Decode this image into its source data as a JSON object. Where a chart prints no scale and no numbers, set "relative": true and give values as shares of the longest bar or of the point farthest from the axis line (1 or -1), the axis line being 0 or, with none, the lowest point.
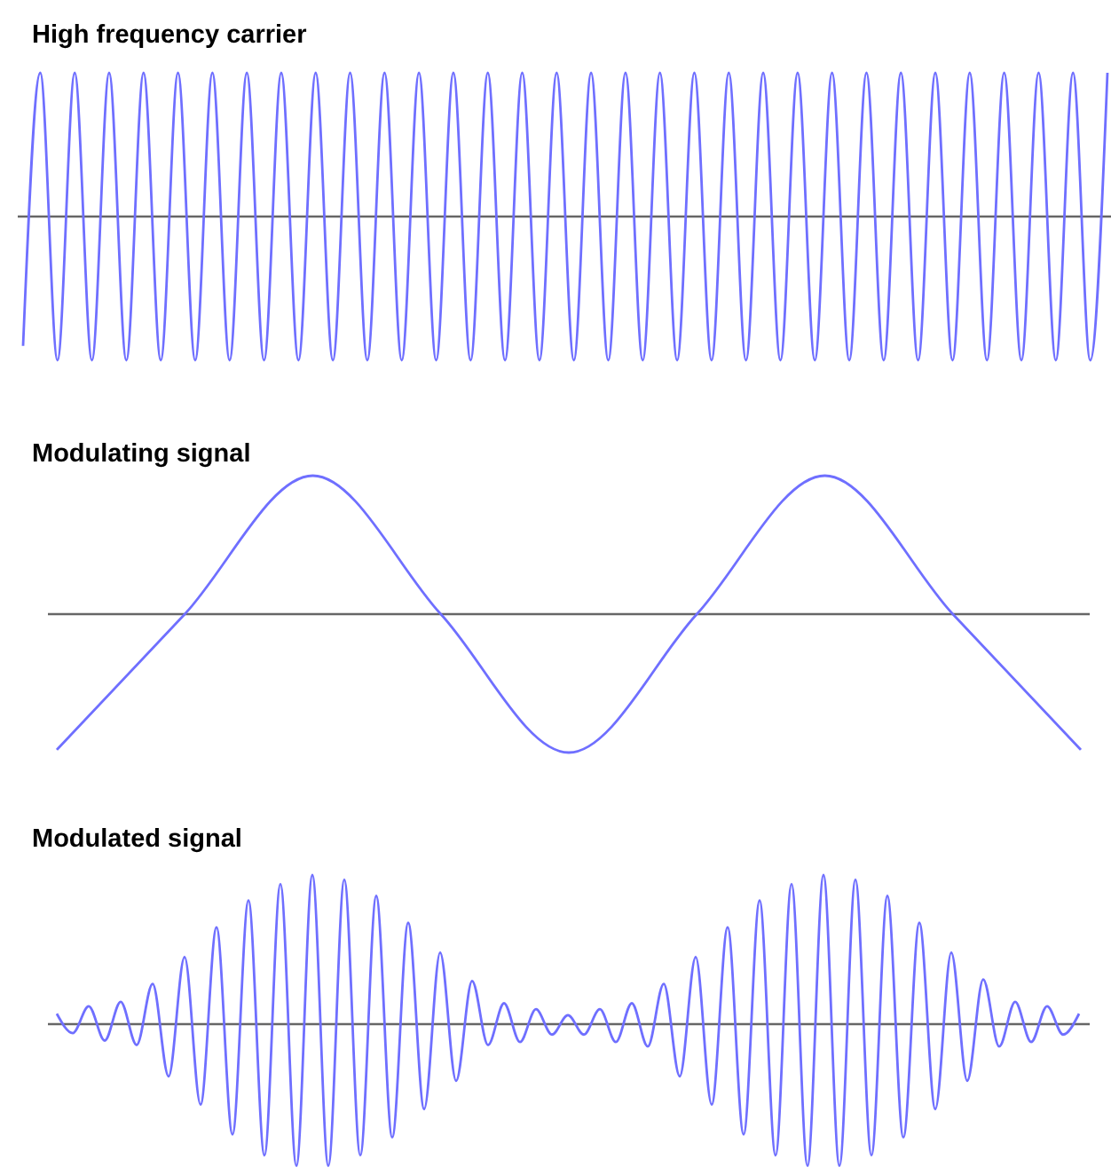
{
  "chart_data": [
    {
      "type": "line",
      "title": "High frequency carrier",
      "relative": true,
      "categories": [
        null,
        null,
        null,
        null,
        null,
        null,
        null,
        null,
        null,
        null,
        null,
        null,
        null,
        null,
        null,
        null,
        null,
        null,
        null,
        null,
        null,
        null,
        null,
        null,
        null,
        null,
        null,
        null,
        null,
        null,
        null,
        null,
        null,
        null,
        null,
        null,
        null,
        null,
        null,
        null,
        null,
        null,
        null,
        null,
        null,
        null,
        null,
        null,
        null,
        null,
        null,
        null,
        null,
        null,
        null,
        null,
        null,
        null,
        null,
        null,
        null,
        null,
        null,
        null
      ],
      "series": [
        {
          "color": "#6f6fff",
          "values": [
            -0.9,
            1,
            -1,
            1,
            -1,
            1,
            -1,
            1,
            -1,
            1,
            -1,
            1,
            -1,
            1,
            -1,
            1,
            -1,
            1,
            -1,
            1,
            -1,
            1,
            -1,
            1,
            -1,
            1,
            -1,
            1,
            -1,
            1,
            -1,
            1,
            -1,
            1,
            -1,
            1,
            -1,
            1,
            -1,
            1,
            -1,
            1,
            -1,
            1,
            -1,
            1,
            -1,
            1,
            -1,
            1,
            -1,
            1,
            -1,
            1,
            -1,
            1,
            -1,
            1,
            -1,
            1,
            -1,
            1,
            -1,
            1
          ]
        }
      ]
    },
    {
      "type": "line",
      "title": "Modulating signal",
      "relative": true,
      "categories": [
        null,
        null,
        null,
        null,
        null,
        null,
        null,
        null,
        null
      ],
      "series": [
        {
          "color": "#6f6fff",
          "values": [
            -0.98,
            0,
            1,
            0,
            -1,
            0,
            1,
            0,
            -0.98
          ]
        }
      ]
    },
    {
      "type": "line",
      "title": "Modulated signal",
      "relative": true,
      "categories": [
        null,
        null,
        null,
        null,
        null,
        null,
        null,
        null,
        null,
        null,
        null,
        null,
        null,
        null,
        null,
        null,
        null,
        null,
        null,
        null,
        null,
        null,
        null,
        null,
        null,
        null,
        null,
        null,
        null,
        null,
        null,
        null,
        null,
        null,
        null,
        null,
        null,
        null,
        null,
        null,
        null,
        null,
        null,
        null,
        null,
        null,
        null,
        null,
        null,
        null,
        null,
        null,
        null,
        null,
        null,
        null,
        null,
        null,
        null,
        null,
        null,
        null,
        null,
        null,
        null
      ],
      "series": [
        {
          "color": "#6f6fff",
          "values": [
            0.07,
            -0.06,
            0.12,
            -0.11,
            0.15,
            -0.14,
            0.27,
            -0.35,
            0.45,
            -0.54,
            0.65,
            -0.74,
            0.83,
            -0.88,
            0.94,
            -0.95,
            1,
            -0.95,
            0.97,
            -0.88,
            0.86,
            -0.76,
            0.68,
            -0.57,
            0.48,
            -0.38,
            0.29,
            -0.14,
            0.14,
            -0.12,
            0.1,
            -0.07,
            0.06,
            -0.07,
            0.1,
            -0.12,
            0.14,
            -0.15,
            0.27,
            -0.35,
            0.45,
            -0.54,
            0.65,
            -0.74,
            0.83,
            -0.88,
            0.94,
            -0.95,
            1,
            -0.95,
            0.97,
            -0.88,
            0.86,
            -0.76,
            0.68,
            -0.57,
            0.48,
            -0.38,
            0.3,
            -0.15,
            0.15,
            -0.12,
            0.12,
            -0.07,
            0.07
          ]
        }
      ]
    }
  ]
}
